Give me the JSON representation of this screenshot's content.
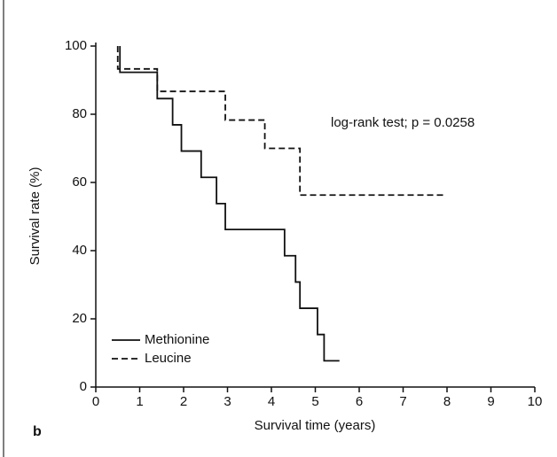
{
  "chart_data": {
    "type": "step",
    "xlabel": "Survival time (years)",
    "ylabel": "Survival rate (%)",
    "annotation": "log-rank test; p = 0.0258",
    "panel_label": "b",
    "xlim": [
      0,
      10
    ],
    "xticks": [
      0,
      1,
      2,
      3,
      4,
      5,
      6,
      7,
      8,
      9,
      10
    ],
    "ylim": [
      0,
      100
    ],
    "yticks": [
      0,
      20,
      40,
      60,
      80,
      100
    ],
    "legend": "lower left",
    "series": [
      {
        "name": "Methionine",
        "color": "#111111",
        "dash": "solid",
        "x": [
          0.55,
          0.55,
          1.4,
          1.75,
          1.95,
          2.4,
          2.75,
          2.95,
          4.3,
          4.55,
          4.65,
          5.05,
          5.2,
          5.55
        ],
        "values": [
          100,
          92.3,
          84.6,
          76.9,
          69.2,
          61.5,
          53.8,
          46.2,
          38.5,
          30.8,
          23.1,
          15.4,
          7.7,
          7.7
        ]
      },
      {
        "name": "Leucine",
        "color": "#111111",
        "dash": "dashed",
        "x": [
          0.5,
          0.5,
          1.4,
          2.95,
          3.85,
          4.65,
          7.95
        ],
        "values": [
          100,
          93.3,
          86.7,
          78.3,
          70,
          56.3,
          56.3
        ]
      }
    ]
  }
}
